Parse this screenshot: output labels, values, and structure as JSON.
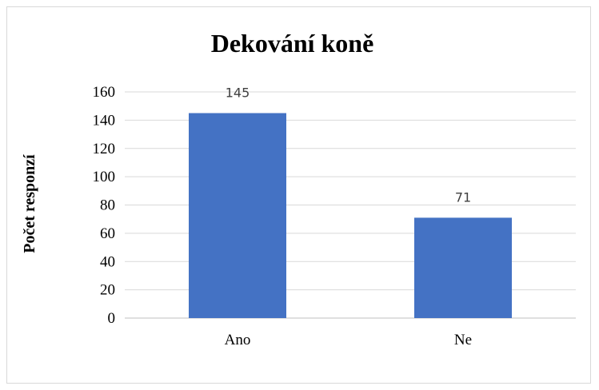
{
  "chart_data": {
    "type": "bar",
    "title": "Dekování koně",
    "ylabel": "Počet responzí",
    "xlabel": "",
    "categories": [
      "Ano",
      "Ne"
    ],
    "values": [
      145,
      71
    ],
    "data_labels": [
      "145",
      "71"
    ],
    "ylim": [
      0,
      160
    ],
    "yticks": [
      0,
      20,
      40,
      60,
      80,
      100,
      120,
      140,
      160
    ],
    "ytick_labels": [
      "0",
      "20",
      "40",
      "60",
      "80",
      "100",
      "120",
      "140",
      "160"
    ],
    "grid": true,
    "legend": "none",
    "bar_color": "#4472c4",
    "grid_color": "#d9d9d9"
  }
}
